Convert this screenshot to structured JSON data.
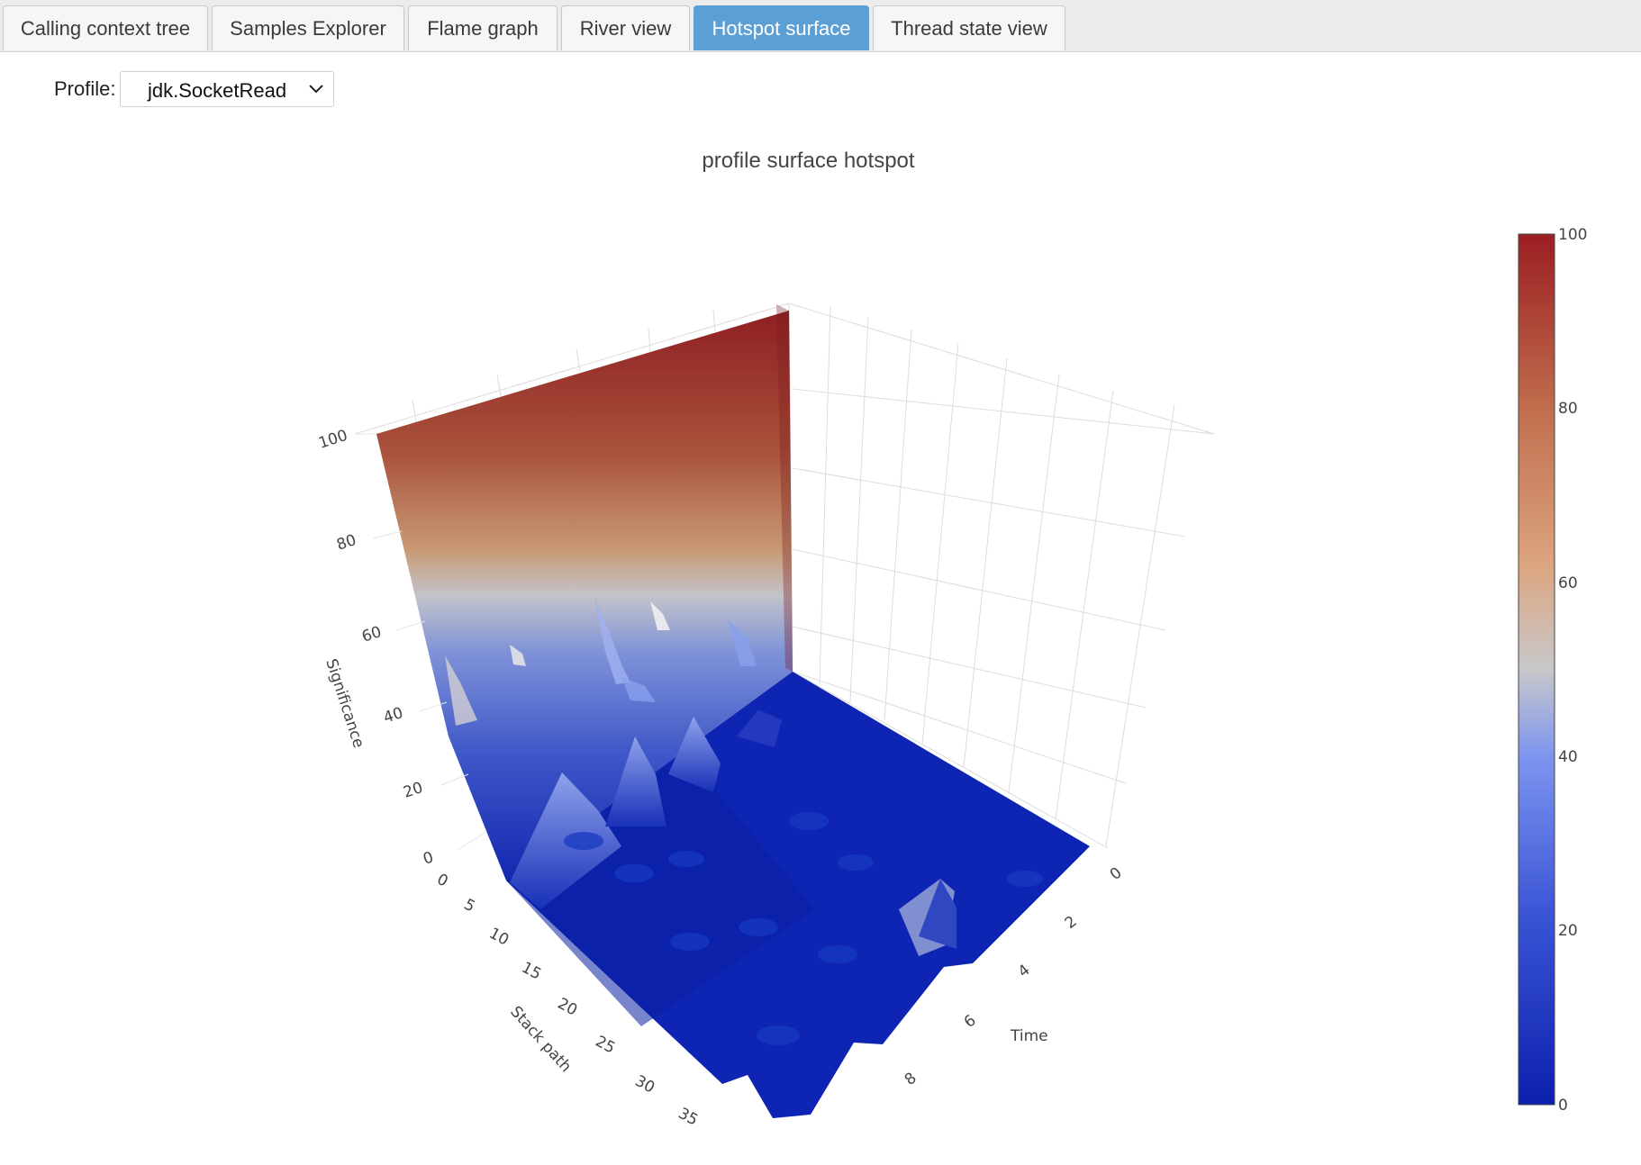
{
  "tabs": [
    {
      "label": "Calling context tree",
      "active": false
    },
    {
      "label": "Samples Explorer",
      "active": false
    },
    {
      "label": "Flame graph",
      "active": false
    },
    {
      "label": "River view",
      "active": false
    },
    {
      "label": "Hotspot surface",
      "active": true
    },
    {
      "label": "Thread state view",
      "active": false
    }
  ],
  "profile": {
    "label": "Profile:",
    "selected": "jdk.SocketRead"
  },
  "icons": {
    "select_arrow": "chevron-down-icon"
  },
  "colors": {
    "active_tab": "#5b9fd4"
  },
  "chart_data": {
    "type": "surface",
    "title": "profile surface hotspot",
    "zlabel": "Significance",
    "xlabel": "Stack path",
    "ylabel": "Time",
    "z_ticks": [
      "0",
      "20",
      "40",
      "60",
      "80",
      "100"
    ],
    "x_ticks": [
      "0",
      "5",
      "10",
      "15",
      "20",
      "25",
      "30",
      "35"
    ],
    "y_ticks": [
      "0",
      "2",
      "4",
      "6",
      "8"
    ],
    "zlim": [
      0,
      100
    ],
    "xlim": [
      0,
      35
    ],
    "ylim": [
      0,
      9
    ],
    "colorscale": [
      "#0b1fad",
      "#6f8ff0",
      "#c9c6c0",
      "#d99a6a",
      "#9e2a24"
    ],
    "colorbar_ticks": [
      "0",
      "20",
      "40",
      "60",
      "80",
      "100"
    ],
    "peaks": [
      {
        "stack_path": 0,
        "time": 0,
        "significance": 100,
        "note_free": true
      },
      {
        "stack_path": 3,
        "time": 0.3,
        "significance": 35
      },
      {
        "stack_path": 6,
        "time": 1.2,
        "significance": 28
      },
      {
        "stack_path": 5,
        "time": 2.5,
        "significance": 30
      },
      {
        "stack_path": 4,
        "time": 3.7,
        "significance": 25
      },
      {
        "stack_path": 8,
        "time": 5.0,
        "significance": 20
      },
      {
        "stack_path": 24,
        "time": 4.8,
        "significance": 22
      }
    ]
  }
}
